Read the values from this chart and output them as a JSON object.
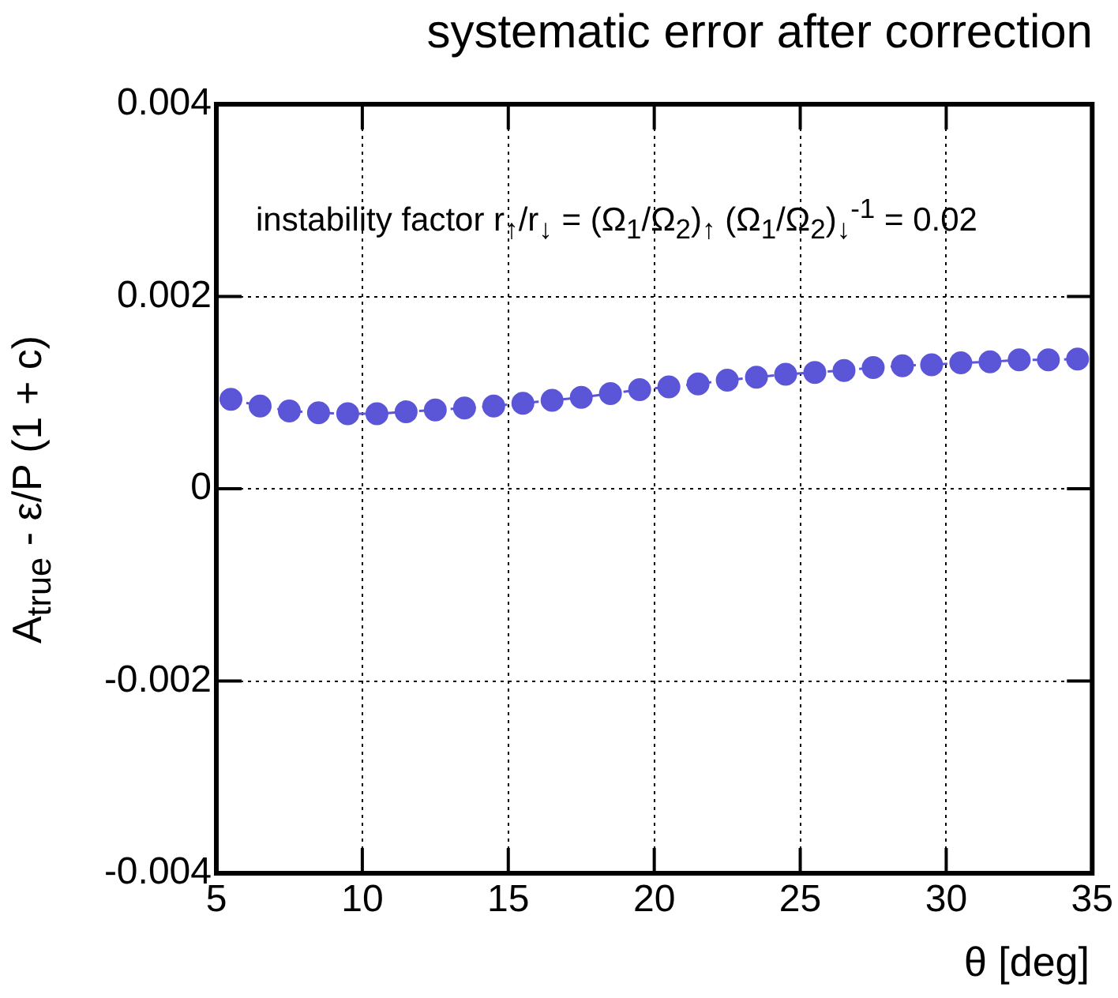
{
  "chart_data": {
    "type": "line",
    "title": "systematic error after correction",
    "xlabel": "θ   [deg]",
    "ylabel": "A$_{true}$ - ε/P (1 + c)",
    "annotations": [
      "instability factor   r$_{↑}$/r$_{↓}$ = (Ω$_{1}$/Ω$_{2}$)$_{↑}$ (Ω$_{1}$/Ω$_{2}$)$_{↓}$$^{-1}$ = 0.02"
    ],
    "x": [
      5.5,
      6.5,
      7.5,
      8.5,
      9.5,
      10.5,
      11.5,
      12.5,
      13.5,
      14.5,
      15.5,
      16.5,
      17.5,
      18.5,
      19.5,
      20.5,
      21.5,
      22.5,
      23.5,
      24.5,
      25.5,
      26.5,
      27.5,
      28.5,
      29.5,
      30.5,
      31.5,
      32.5,
      33.5,
      34.5
    ],
    "series": [
      {
        "color": "#5b55d8",
        "values": [
          0.00093,
          0.00086,
          0.00081,
          0.00079,
          0.00078,
          0.00078,
          0.0008,
          0.00082,
          0.00084,
          0.00086,
          0.00089,
          0.00092,
          0.00095,
          0.00099,
          0.00103,
          0.00106,
          0.00109,
          0.00113,
          0.00116,
          0.00119,
          0.00121,
          0.00123,
          0.00126,
          0.00128,
          0.00129,
          0.00131,
          0.00132,
          0.00134,
          0.00134,
          0.00135
        ]
      }
    ],
    "xlim": [
      5,
      35
    ],
    "xticks": [
      5,
      10,
      15,
      20,
      25,
      30,
      35
    ],
    "ylim": [
      -0.004,
      0.004
    ],
    "yticks": [
      -0.004,
      -0.002,
      0,
      0.002,
      0.004
    ],
    "grid": true,
    "legend": false,
    "marker": "circle",
    "line_style": "dashed"
  }
}
